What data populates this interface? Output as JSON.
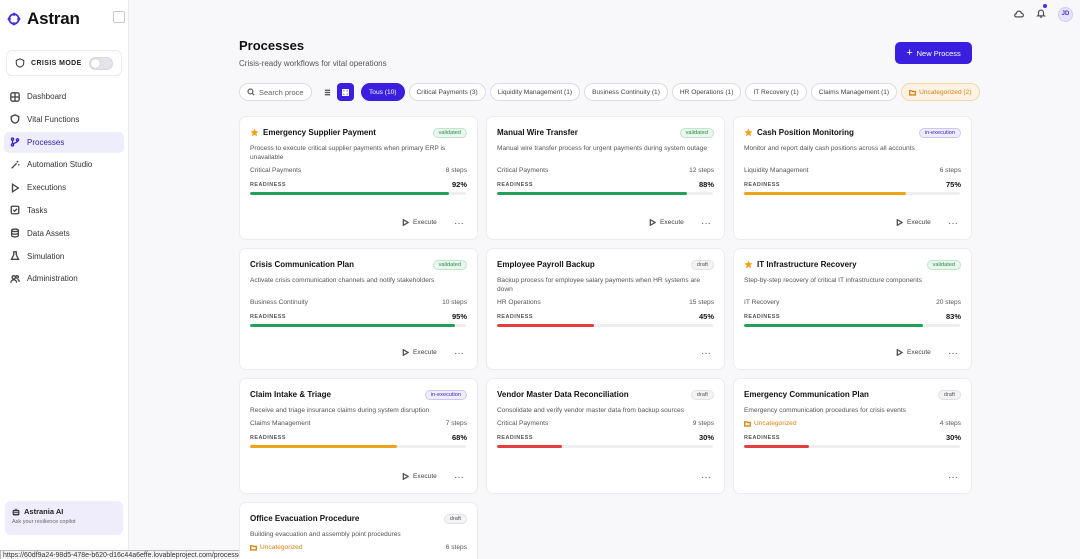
{
  "app": {
    "name": "Astran"
  },
  "crisis_mode": {
    "label": "CRISIS MODE",
    "enabled": false
  },
  "sidebar": {
    "items": [
      {
        "label": "Dashboard",
        "icon": "grid-icon",
        "active": false
      },
      {
        "label": "Vital Functions",
        "icon": "shield-icon",
        "active": false
      },
      {
        "label": "Processes",
        "icon": "git-branch-icon",
        "active": true
      },
      {
        "label": "Automation Studio",
        "icon": "wand-icon",
        "active": false
      },
      {
        "label": "Executions",
        "icon": "play-icon",
        "active": false
      },
      {
        "label": "Tasks",
        "icon": "checkbox-icon",
        "active": false
      },
      {
        "label": "Data Assets",
        "icon": "database-icon",
        "active": false
      },
      {
        "label": "Simulation",
        "icon": "flask-icon",
        "active": false
      },
      {
        "label": "Administration",
        "icon": "users-icon",
        "active": false
      }
    ],
    "ai": {
      "title": "Astrania AI",
      "subtitle": "Ask your resilience copilot"
    }
  },
  "header": {
    "avatar_initials": "JD"
  },
  "page": {
    "title": "Processes",
    "subtitle": "Crisis-ready workflows for vital operations",
    "new_button": "New Process"
  },
  "toolbar": {
    "search_placeholder": "Search proce",
    "filters": [
      {
        "label": "Tous (10)",
        "state": "active"
      },
      {
        "label": "Critical Payments (3)",
        "state": "normal"
      },
      {
        "label": "Liquidity Management (1)",
        "state": "normal"
      },
      {
        "label": "Business Continuity (1)",
        "state": "normal"
      },
      {
        "label": "HR Operations (1)",
        "state": "normal"
      },
      {
        "label": "IT Recovery (1)",
        "state": "normal"
      },
      {
        "label": "Claims Management (1)",
        "state": "normal"
      },
      {
        "label": "Uncategorized (2)",
        "state": "uncategorized"
      }
    ]
  },
  "labels": {
    "readiness": "READINESS",
    "execute": "Execute",
    "more": "···"
  },
  "colors": {
    "accent": "#3a1fe0",
    "green": "#22a05a",
    "orange": "#f0a21a",
    "red": "#e53e3e"
  },
  "cards": [
    {
      "title": "Emergency Supplier Payment",
      "starred": true,
      "status": "validated",
      "description": "Process to execute critical supplier payments when primary ERP is unavailable",
      "category": "Critical Payments",
      "uncategorized": false,
      "steps": "8 steps",
      "readiness": "92%",
      "readiness_value": 92,
      "color": "green",
      "executable": true
    },
    {
      "title": "Manual Wire Transfer",
      "starred": false,
      "status": "validated",
      "description": "Manual wire transfer process for urgent payments during system outage",
      "category": "Critical Payments",
      "uncategorized": false,
      "steps": "12 steps",
      "readiness": "88%",
      "readiness_value": 88,
      "color": "green",
      "executable": true
    },
    {
      "title": "Cash Position Monitoring",
      "starred": true,
      "status": "in-execution",
      "description": "Monitor and report daily cash positions across all accounts",
      "category": "Liquidity Management",
      "uncategorized": false,
      "steps": "6 steps",
      "readiness": "75%",
      "readiness_value": 75,
      "color": "orange",
      "executable": true
    },
    {
      "title": "Crisis Communication Plan",
      "starred": false,
      "status": "validated",
      "description": "Activate crisis communication channels and notify stakeholders",
      "category": "Business Continuity",
      "uncategorized": false,
      "steps": "10 steps",
      "readiness": "95%",
      "readiness_value": 95,
      "color": "green",
      "executable": true
    },
    {
      "title": "Employee Payroll Backup",
      "starred": false,
      "status": "draft",
      "description": "Backup process for employee salary payments when HR systems are down",
      "category": "HR Operations",
      "uncategorized": false,
      "steps": "15 steps",
      "readiness": "45%",
      "readiness_value": 45,
      "color": "red",
      "executable": false
    },
    {
      "title": "IT Infrastructure Recovery",
      "starred": true,
      "status": "validated",
      "description": "Step-by-step recovery of critical IT infrastructure components",
      "category": "IT Recovery",
      "uncategorized": false,
      "steps": "20 steps",
      "readiness": "83%",
      "readiness_value": 83,
      "color": "green",
      "executable": true
    },
    {
      "title": "Claim Intake & Triage",
      "starred": false,
      "status": "in-execution",
      "description": "Receive and triage insurance claims during system disruption",
      "category": "Claims Management",
      "uncategorized": false,
      "steps": "7 steps",
      "readiness": "68%",
      "readiness_value": 68,
      "color": "orange",
      "executable": true
    },
    {
      "title": "Vendor Master Data Reconciliation",
      "starred": false,
      "status": "draft",
      "description": "Consolidate and verify vendor master data from backup sources",
      "category": "Critical Payments",
      "uncategorized": false,
      "steps": "9 steps",
      "readiness": "30%",
      "readiness_value": 30,
      "color": "red",
      "executable": false
    },
    {
      "title": "Emergency Communication Plan",
      "starred": false,
      "status": "draft",
      "description": "Emergency communication procedures for crisis events",
      "category": "Uncategorized",
      "uncategorized": true,
      "steps": "4 steps",
      "readiness": "30%",
      "readiness_value": 30,
      "color": "red",
      "executable": false
    },
    {
      "title": "Office Evacuation Procedure",
      "starred": false,
      "status": "draft",
      "description": "Building evacuation and assembly point procedures",
      "category": "Uncategorized",
      "uncategorized": true,
      "steps": "6 steps",
      "readiness": "",
      "readiness_value": null,
      "color": "red",
      "executable": false
    }
  ],
  "browser": {
    "status_url": "https://60df9a24-98d5-478e-b620-d16c44a6effe.lovableproject.com/processes"
  }
}
